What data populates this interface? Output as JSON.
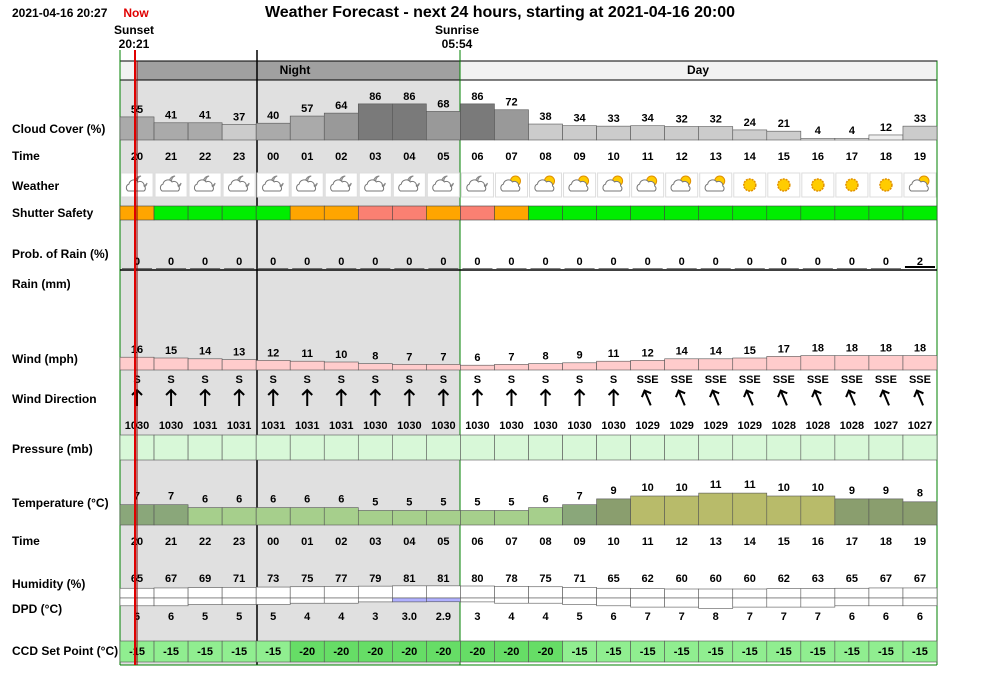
{
  "header": {
    "timestamp": "2021-04-16 20:27",
    "now": "Now",
    "title": "Weather Forecast - next 24 hours, starting at 2021-04-16 20:00"
  },
  "sun": {
    "sunset_label": "Sunset",
    "sunset_time": "20:21",
    "sunrise_label": "Sunrise",
    "sunrise_time": "05:54"
  },
  "bands": {
    "night": "Night",
    "day": "Day"
  },
  "rows": {
    "cloud": "Cloud Cover (%)",
    "time": "Time",
    "weather": "Weather",
    "shutter": "Shutter Safety",
    "rain_prob": "Prob. of Rain (%)",
    "rain": "Rain (mm)",
    "wind": "Wind (mph)",
    "wind_dir": "Wind Direction",
    "pressure": "Pressure (mb)",
    "temperature": "Temperature (°C)",
    "time2": "Time",
    "humidity": "Humidity (%)",
    "dpd": "DPD (°C)",
    "ccd": "CCD Set Point (°C)"
  },
  "hours": [
    "20",
    "21",
    "22",
    "23",
    "00",
    "01",
    "02",
    "03",
    "04",
    "05",
    "06",
    "07",
    "08",
    "09",
    "10",
    "11",
    "12",
    "13",
    "14",
    "15",
    "16",
    "17",
    "18",
    "19"
  ],
  "cloud_cover": [
    55,
    41,
    41,
    37,
    40,
    57,
    64,
    86,
    86,
    68,
    86,
    72,
    38,
    34,
    33,
    34,
    32,
    32,
    24,
    21,
    4,
    4,
    12,
    33
  ],
  "weather_icons": [
    "cloud-moon",
    "cloud-moon",
    "cloud-moon",
    "cloud-moon",
    "cloud-moon",
    "cloud-moon",
    "cloud-moon",
    "cloud-moon",
    "cloud-moon",
    "cloud-moon",
    "cloud-moon",
    "cloud-sun",
    "cloud-sun",
    "cloud-sun",
    "cloud-sun",
    "cloud-sun",
    "cloud-sun",
    "cloud-sun",
    "sun",
    "sun",
    "sun",
    "sun",
    "sun",
    "cloud-sun"
  ],
  "shutter_safety": [
    "#ffa500",
    "#00ee00",
    "#00ee00",
    "#00ee00",
    "#00ee00",
    "#ffa500",
    "#ffa500",
    "#fa8072",
    "#fa8072",
    "#ffa500",
    "#fa8072",
    "#ffa500",
    "#00ee00",
    "#00ee00",
    "#00ee00",
    "#00ee00",
    "#00ee00",
    "#00ee00",
    "#00ee00",
    "#00ee00",
    "#00ee00",
    "#00ee00",
    "#00ee00",
    "#00ee00"
  ],
  "rain_probability": [
    0,
    0,
    0,
    0,
    0,
    0,
    0,
    0,
    0,
    0,
    0,
    0,
    0,
    0,
    0,
    0,
    0,
    0,
    0,
    0,
    0,
    0,
    0,
    2
  ],
  "wind_speed": [
    16,
    15,
    14,
    13,
    12,
    11,
    10,
    8,
    7,
    7,
    6,
    7,
    8,
    9,
    11,
    12,
    14,
    14,
    15,
    17,
    18,
    18,
    18,
    18
  ],
  "wind_direction": [
    "S",
    "S",
    "S",
    "S",
    "S",
    "S",
    "S",
    "S",
    "S",
    "S",
    "S",
    "S",
    "S",
    "S",
    "S",
    "SSE",
    "SSE",
    "SSE",
    "SSE",
    "SSE",
    "SSE",
    "SSE",
    "SSE",
    "SSE"
  ],
  "pressure": [
    1030,
    1030,
    1031,
    1031,
    1031,
    1031,
    1031,
    1030,
    1030,
    1030,
    1030,
    1030,
    1030,
    1030,
    1030,
    1029,
    1029,
    1029,
    1029,
    1028,
    1028,
    1028,
    1027,
    1027
  ],
  "temperature": [
    7,
    7,
    6,
    6,
    6,
    6,
    6,
    5,
    5,
    5,
    5,
    5,
    6,
    7,
    9,
    10,
    10,
    11,
    11,
    10,
    10,
    9,
    9,
    8
  ],
  "humidity": [
    65,
    67,
    69,
    71,
    73,
    75,
    77,
    79,
    81,
    81,
    80,
    78,
    75,
    71,
    65,
    62,
    60,
    60,
    60,
    62,
    63,
    65,
    67,
    67
  ],
  "dpd": {
    "values": [
      6,
      6,
      5,
      5,
      5,
      4,
      4,
      3,
      3.0,
      2.9,
      3,
      4,
      4,
      5,
      6,
      7,
      7,
      8,
      7,
      7,
      7,
      6,
      6,
      6
    ],
    "value_labels": [
      "6",
      "6",
      "5",
      "5",
      "5",
      "4",
      "4",
      "3",
      "3.0",
      "2.9",
      "3",
      "4",
      "4",
      "5",
      "6",
      "7",
      "7",
      "8",
      "7",
      "7",
      "7",
      "6",
      "6",
      "6"
    ]
  },
  "ccd_set_point": [
    -15,
    -15,
    -15,
    -15,
    -15,
    -20,
    -20,
    -20,
    -20,
    -20,
    -20,
    -20,
    -20,
    -15,
    -15,
    -15,
    -15,
    -15,
    -15,
    -15,
    -15,
    -15,
    -15,
    -15
  ]
}
